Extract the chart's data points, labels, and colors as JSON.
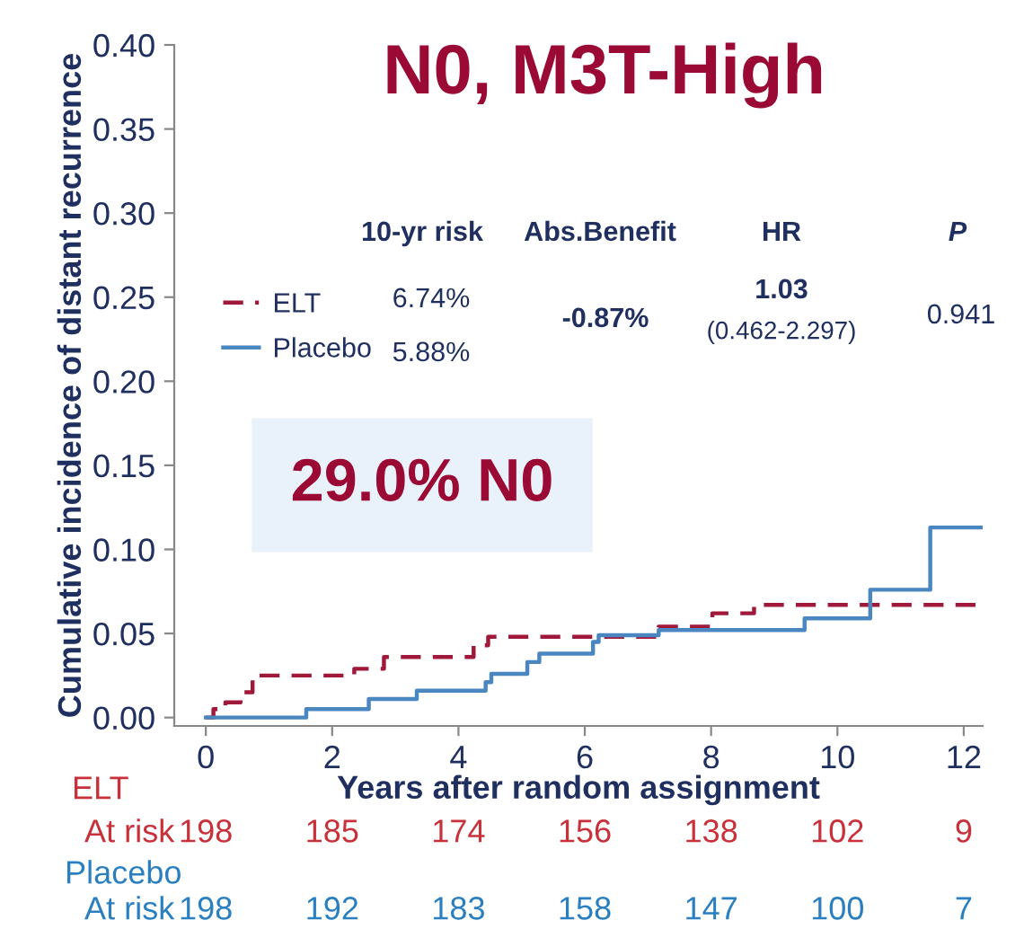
{
  "chart_data": {
    "type": "step",
    "title": "N0, M3T-High",
    "xlabel": "Years after random assignment",
    "ylabel": "Cumulative incidence of distant recurrence",
    "series": [
      {
        "name": "ELT",
        "color": "#a0183a",
        "line_style": "dashed",
        "x": [
          0,
          0.12,
          0.31,
          0.55,
          0.74,
          2.35,
          2.82,
          4.24,
          4.47,
          7.17,
          8.02,
          8.68,
          12.3
        ],
        "values": [
          0,
          0.005,
          0.009,
          0.015,
          0.025,
          0.029,
          0.036,
          0.043,
          0.048,
          0.054,
          0.062,
          0.067,
          0.067
        ]
      },
      {
        "name": "Placebo",
        "color": "#4a86c0",
        "line_style": "solid",
        "x": [
          0,
          1.59,
          2.58,
          3.34,
          4.43,
          4.52,
          5.09,
          5.28,
          6.13,
          6.22,
          7.17,
          9.48,
          10.52,
          11.47,
          12.3
        ],
        "values": [
          0,
          0.005,
          0.011,
          0.016,
          0.021,
          0.026,
          0.033,
          0.038,
          0.045,
          0.049,
          0.052,
          0.059,
          0.076,
          0.113,
          0.113
        ]
      }
    ],
    "xlim": [
      -0.5,
      12.3
    ],
    "xticks": [
      0,
      2,
      4,
      6,
      8,
      10,
      12
    ],
    "ylim": [
      -0.005,
      0.4
    ],
    "yticks": [
      {
        "value": 0,
        "label": "0.00"
      },
      0.05,
      {
        "value": 0.1,
        "label": "0.10"
      },
      0.15,
      {
        "value": 0.2,
        "label": "0.20"
      },
      0.25,
      {
        "value": 0.3,
        "label": "0.30"
      },
      0.35,
      {
        "value": 0.4,
        "label": "0.40"
      }
    ],
    "grid": false,
    "legend": "left",
    "marker": "none",
    "annotations": [
      "10-yr risk",
      "Abs.Benefit",
      "HR",
      "P",
      "6.74%",
      "5.88%",
      "-0.87%",
      "1.03",
      "(0.462-2.297)",
      "0.941",
      "29.0% N0",
      "ELT",
      "At risk",
      "198",
      "185",
      "174",
      "156",
      "138",
      "102",
      "9",
      "Placebo",
      "At risk",
      "198",
      "192",
      "183",
      "158",
      "147",
      "100",
      "7"
    ]
  }
}
